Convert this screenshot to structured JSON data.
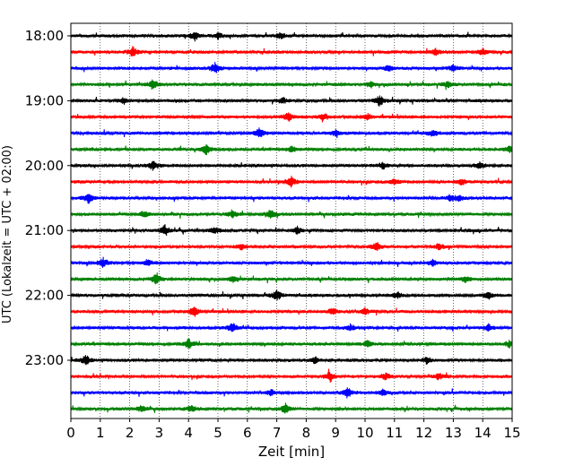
{
  "chart_data": {
    "type": "line",
    "subtype": "helicorder",
    "title": "",
    "xlabel": "Zeit  [min]",
    "ylabel": "UTC (Lokalzeit = UTC + 02:00)",
    "xlim": [
      0,
      15
    ],
    "x_ticks": [
      "0",
      "1",
      "2",
      "3",
      "4",
      "5",
      "6",
      "7",
      "8",
      "9",
      "10",
      "11",
      "12",
      "13",
      "14",
      "15"
    ],
    "y_tick_labels": [
      "18:00",
      "19:00",
      "20:00",
      "21:00",
      "22:00",
      "23:00"
    ],
    "grid": "vertical dotted at each minute",
    "trace_interval_min": 15,
    "trace_colors": [
      "#000000",
      "#ff0000",
      "#0000ff",
      "#008000"
    ],
    "traces": [
      {
        "start": "18:00",
        "events_min": [
          4.2,
          5.0,
          7.1
        ]
      },
      {
        "start": "18:15",
        "events_min": [
          2.1,
          12.4,
          14.0
        ]
      },
      {
        "start": "18:30",
        "events_min": [
          4.9,
          10.8,
          13.0
        ]
      },
      {
        "start": "18:45",
        "events_min": [
          2.8,
          10.2,
          12.8
        ]
      },
      {
        "start": "19:00",
        "events_min": [
          10.5,
          7.2,
          1.8
        ]
      },
      {
        "start": "19:15",
        "events_min": [
          7.4,
          8.6,
          10.1
        ]
      },
      {
        "start": "19:30",
        "events_min": [
          6.4,
          9.0,
          12.3
        ]
      },
      {
        "start": "19:45",
        "events_min": [
          4.6,
          7.5,
          14.9
        ]
      },
      {
        "start": "20:00",
        "events_min": [
          2.8,
          10.6,
          13.9
        ]
      },
      {
        "start": "20:15",
        "events_min": [
          7.5,
          11.0,
          13.3
        ]
      },
      {
        "start": "20:30",
        "events_min": [
          0.6,
          12.9,
          13.2
        ]
      },
      {
        "start": "20:45",
        "events_min": [
          6.8,
          2.5,
          5.5
        ]
      },
      {
        "start": "21:00",
        "events_min": [
          3.2,
          7.7,
          4.9
        ]
      },
      {
        "start": "21:15",
        "events_min": [
          10.4,
          12.5,
          5.8
        ]
      },
      {
        "start": "21:30",
        "events_min": [
          1.1,
          2.6,
          12.3
        ]
      },
      {
        "start": "21:45",
        "events_min": [
          2.9,
          13.4,
          5.5
        ]
      },
      {
        "start": "22:00",
        "events_min": [
          7.0,
          14.2,
          11.1
        ]
      },
      {
        "start": "22:15",
        "events_min": [
          4.2,
          8.9,
          10.0
        ]
      },
      {
        "start": "22:30",
        "events_min": [
          5.5,
          9.5,
          14.2
        ]
      },
      {
        "start": "22:45",
        "events_min": [
          4.0,
          10.1,
          14.9
        ]
      },
      {
        "start": "23:00",
        "events_min": [
          0.5,
          8.3,
          12.1
        ]
      },
      {
        "start": "23:15",
        "events_min": [
          8.8,
          10.7,
          12.5
        ]
      },
      {
        "start": "23:30",
        "events_min": [
          9.4,
          10.6,
          6.8
        ]
      },
      {
        "start": "23:45",
        "events_min": [
          7.3,
          4.1,
          2.4
        ]
      }
    ]
  }
}
